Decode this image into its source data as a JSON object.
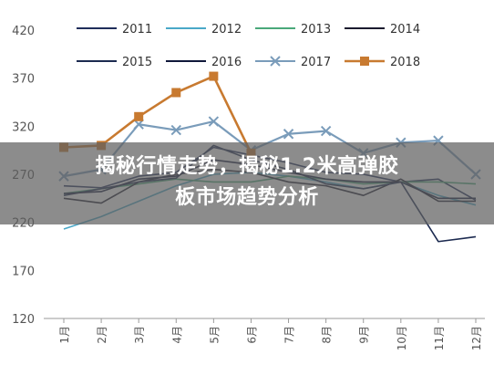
{
  "chart_data": {
    "type": "line",
    "categories": [
      "1月",
      "2月",
      "3月",
      "4月",
      "5月",
      "6月",
      "7月",
      "8月",
      "9月",
      "10月",
      "11月",
      "12月"
    ],
    "ylim": [
      120,
      420
    ],
    "yticks": [
      120,
      170,
      220,
      270,
      320,
      370,
      420
    ],
    "legend_position": "top",
    "grid": false,
    "series": [
      {
        "name": "2011",
        "color": "#1f2d5a",
        "marker": "none",
        "values": [
          258,
          256,
          268,
          272,
          298,
          290,
          282,
          272,
          270,
          262,
          265,
          243
        ]
      },
      {
        "name": "2012",
        "color": "#4aa8c8",
        "marker": "none",
        "values": [
          213,
          226,
          242,
          258,
          270,
          272,
          268,
          262,
          255,
          262,
          248,
          238
        ]
      },
      {
        "name": "2013",
        "color": "#4aa87a",
        "marker": "none",
        "values": [
          250,
          255,
          260,
          265,
          262,
          262,
          268,
          265,
          260,
          262,
          262,
          260
        ]
      },
      {
        "name": "2014",
        "color": "#1a1a2e",
        "marker": "none",
        "values": [
          245,
          240,
          262,
          270,
          275,
          272,
          262,
          258,
          248,
          265,
          242,
          242
        ]
      },
      {
        "name": "2015",
        "color": "#1c2a50",
        "marker": "none",
        "values": [
          248,
          255,
          262,
          266,
          300,
          285,
          275,
          260,
          255,
          262,
          200,
          205
        ]
      },
      {
        "name": "2016",
        "color": "#10183a",
        "marker": "none",
        "values": [
          250,
          252,
          265,
          268,
          285,
          280,
          272,
          265,
          262,
          262,
          245,
          245
        ]
      },
      {
        "name": "2017",
        "color": "#7a9cba",
        "marker": "x",
        "values": [
          268,
          275,
          322,
          316,
          325,
          295,
          312,
          315,
          292,
          303,
          305,
          270
        ]
      },
      {
        "name": "2018",
        "color": "#c87a30",
        "marker": "square",
        "values": [
          298,
          300,
          330,
          355,
          372,
          292,
          null,
          null,
          null,
          null,
          null,
          null
        ]
      }
    ]
  },
  "overlay": {
    "title_line1": "揭秘行情走势，揭秘1.2米高弹胶",
    "title_line2": "板市场趋势分析"
  }
}
